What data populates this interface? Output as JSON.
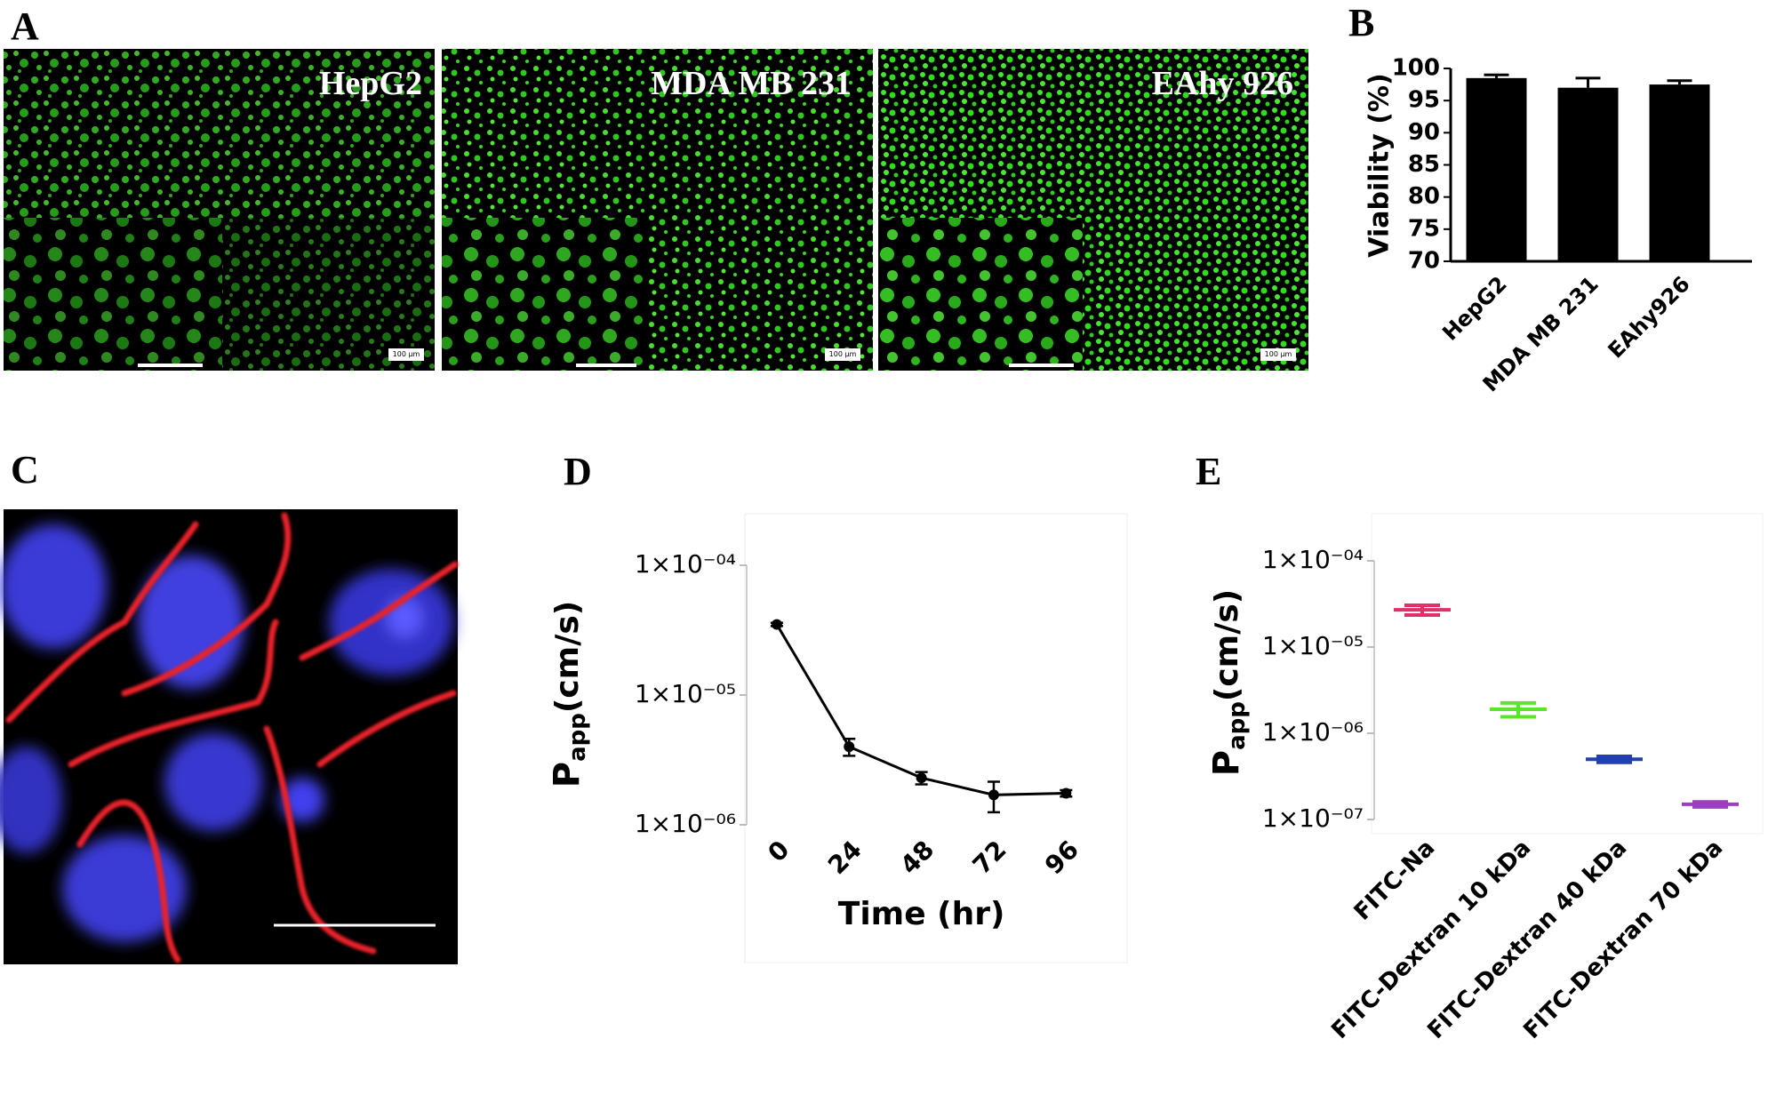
{
  "panel_labels": [
    "A",
    "B",
    "C",
    "D",
    "E"
  ],
  "images": [
    {
      "label": "HepG2",
      "scale": "100 µm"
    },
    {
      "label": "MDA MB 231",
      "scale": "100 µm"
    },
    {
      "label": "EAhy 926",
      "scale": "100 µm"
    }
  ],
  "chart_data": [
    {
      "type": "bar",
      "y_label": "Viability (%)",
      "categories": [
        "HepG2",
        "MDA MB 231",
        "EAhy926"
      ],
      "values": [
        98.5,
        97,
        97.5
      ],
      "errors": [
        0.5,
        1.5,
        0.6
      ],
      "color": "#000000",
      "ylim": [
        70,
        100
      ],
      "yticks": [
        70,
        75,
        80,
        85,
        90,
        95,
        100
      ]
    },
    {
      "type": "line",
      "x_label": "Time (hr)",
      "y_label": {
        "symbol": "P",
        "subscript": "app",
        "unit": "(cm/s)"
      },
      "x": [
        0,
        24,
        48,
        72,
        96
      ],
      "values": [
        3.5e-05,
        4e-06,
        2.3e-06,
        1.7e-06,
        1.75e-06
      ],
      "errors": [
        1e-06,
        6e-07,
        2.5e-07,
        4.5e-07,
        1e-07
      ],
      "color": "#000000",
      "xlim": [
        -10,
        108
      ],
      "xticks": [
        0,
        24,
        48,
        72,
        96
      ],
      "ylim": [
        1e-06,
        0.0001
      ],
      "log_y": true,
      "yticks": [
        {
          "value": 1e-06,
          "label": "1×10⁻⁰⁶"
        },
        {
          "value": 1e-05,
          "label": "1×10⁻⁰⁵"
        },
        {
          "value": 0.0001,
          "label": "1×10⁻⁰⁴"
        }
      ]
    },
    {
      "type": "errorbar",
      "y_label": {
        "symbol": "P",
        "subscript": "app",
        "unit": "(cm/s)"
      },
      "categories": [
        "FITC-Na",
        "FITC-Dextran 10 kDa",
        "FITC-Dextran 40 kDa",
        "FITC-Dextran 70 kDa"
      ],
      "values": [
        2.7e-05,
        1.9e-06,
        5e-07,
        1.5e-07
      ],
      "errors": [
        3.5e-06,
        3.5e-07,
        4e-08,
        1e-08
      ],
      "colors": [
        "#e0306a",
        "#5be52a",
        "#2141b0",
        "#9b3fc0"
      ],
      "ylim": [
        1e-07,
        0.0001
      ],
      "log_y": true,
      "yticks": [
        {
          "value": 1e-07,
          "label": "1×10⁻⁰⁷"
        },
        {
          "value": 1e-06,
          "label": "1×10⁻⁰⁶"
        },
        {
          "value": 1e-05,
          "label": "1×10⁻⁰⁵"
        },
        {
          "value": 0.0001,
          "label": "1×10⁻⁰⁴"
        }
      ]
    }
  ]
}
